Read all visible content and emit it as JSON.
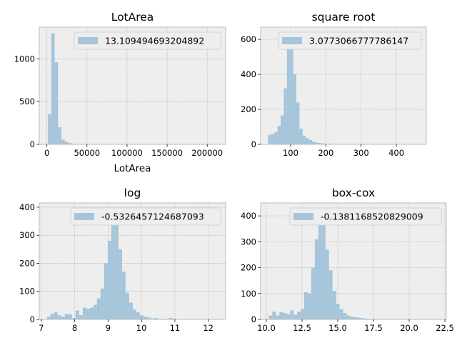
{
  "figure": {
    "background": "#ffffff"
  },
  "style": {
    "axes_bg": "#eeeeee",
    "grid_color": "#b2b2b2",
    "spine_color": "#bcbcbc",
    "bar_color": "#a6c5da"
  },
  "chart_data": [
    {
      "type": "bar",
      "title": "LotArea",
      "xlabel": "LotArea",
      "ylabel": "",
      "legend": {
        "label": "13.109494693204892",
        "loc": "upper right"
      },
      "grid": true,
      "xlim": [
        -9500,
        223000
      ],
      "ylim": [
        0,
        1370
      ],
      "xticks": [
        0,
        50000,
        100000,
        150000,
        200000
      ],
      "xtick_labels": [
        "0",
        "50000",
        "100000",
        "150000",
        "200000"
      ],
      "yticks": [
        0,
        500,
        1000
      ],
      "ytick_labels": [
        "0",
        "500",
        "1000"
      ],
      "bin_edges": [
        1300,
        5500,
        9700,
        13900,
        18100,
        22300,
        26500,
        30700,
        34900,
        39100,
        43300,
        47500,
        51700,
        55900,
        60100,
        64300,
        68500,
        72700,
        76900,
        81100,
        85300,
        89500,
        93700,
        97900,
        102100,
        106300,
        110500,
        114700,
        118900,
        123100,
        127300,
        131500,
        135700,
        139900,
        144100,
        148300,
        152500,
        156700,
        160900,
        165100,
        169300,
        173500,
        177700,
        181900,
        186100,
        190300,
        194500,
        198700,
        202900,
        207100,
        211300,
        215500
      ],
      "counts": [
        350,
        1300,
        960,
        200,
        55,
        30,
        15,
        8,
        4,
        3,
        2,
        1,
        1,
        1,
        0,
        1,
        0,
        0,
        0,
        0,
        0,
        0,
        0,
        0,
        0,
        0,
        0,
        0,
        0,
        0,
        0,
        0,
        0,
        0,
        0,
        0,
        0,
        0,
        1,
        0,
        0,
        0,
        0,
        0,
        0,
        0,
        0,
        0,
        0,
        0,
        1
      ]
    },
    {
      "type": "bar",
      "title": "square root",
      "xlabel": "",
      "ylabel": "",
      "legend": {
        "label": "3.0773066777786147",
        "loc": "upper right"
      },
      "grid": true,
      "xlim": [
        15,
        485
      ],
      "ylim": [
        0,
        670
      ],
      "xticks": [
        100,
        200,
        300,
        400
      ],
      "xtick_labels": [
        "100",
        "200",
        "300",
        "400"
      ],
      "yticks": [
        0,
        200,
        400,
        600
      ],
      "ytick_labels": [
        "0",
        "200",
        "400",
        "600"
      ],
      "bin_edges": [
        36.06,
        44.97,
        53.88,
        62.79,
        71.7,
        80.61,
        89.52,
        98.43,
        107.34,
        116.25,
        125.16,
        134.07,
        142.98,
        151.89,
        160.8,
        169.71,
        178.62,
        187.53,
        196.44,
        205.35,
        214.26,
        223.17,
        232.08,
        240.99,
        249.9,
        258.81,
        267.72,
        276.63,
        285.54,
        294.45,
        303.36,
        312.27,
        321.18,
        330.09,
        339.0,
        347.91,
        356.82,
        365.73,
        374.64,
        383.55,
        392.46,
        401.37,
        410.28,
        419.19,
        428.1,
        437.01,
        445.92,
        454.83,
        463.74
      ],
      "counts": [
        55,
        60,
        70,
        105,
        165,
        320,
        600,
        640,
        400,
        240,
        90,
        50,
        35,
        25,
        15,
        10,
        8,
        5,
        3,
        4,
        3,
        2,
        1,
        1,
        0,
        0,
        0,
        0,
        0,
        0,
        0,
        0,
        0,
        0,
        0,
        0,
        0,
        0,
        0,
        0,
        0,
        0,
        0,
        0,
        0,
        0,
        0,
        1
      ]
    },
    {
      "type": "bar",
      "title": "log",
      "xlabel": "",
      "ylabel": "",
      "legend": {
        "label": "-0.5326457124687093",
        "loc": "upper right"
      },
      "grid": true,
      "xlim": [
        6.94,
        12.52
      ],
      "ylim": [
        0,
        415
      ],
      "xticks": [
        7,
        8,
        9,
        10,
        11,
        12
      ],
      "xtick_labels": [
        "7",
        "8",
        "9",
        "10",
        "11",
        "12"
      ],
      "yticks": [
        0,
        100,
        200,
        300,
        400
      ],
      "ytick_labels": [
        "0",
        "100",
        "200",
        "300",
        "400"
      ],
      "bin_edges": [
        7.17,
        7.277,
        7.384,
        7.491,
        7.598,
        7.705,
        7.812,
        7.919,
        8.026,
        8.133,
        8.24,
        8.347,
        8.454,
        8.561,
        8.668,
        8.775,
        8.882,
        8.989,
        9.096,
        9.203,
        9.31,
        9.417,
        9.524,
        9.631,
        9.738,
        9.845,
        9.952,
        10.059,
        10.166,
        10.273,
        10.38,
        10.487,
        10.594,
        10.701,
        10.808,
        10.915,
        11.022,
        11.129,
        11.236,
        11.343,
        11.45,
        11.557,
        11.664,
        11.771,
        11.878,
        11.985,
        12.092,
        12.199,
        12.306
      ],
      "counts": [
        10,
        20,
        25,
        15,
        10,
        20,
        18,
        5,
        32,
        15,
        42,
        38,
        42,
        52,
        75,
        110,
        200,
        280,
        390,
        340,
        250,
        170,
        95,
        60,
        35,
        25,
        15,
        10,
        7,
        3,
        5,
        2,
        2,
        2,
        5,
        3,
        1,
        1,
        0,
        0,
        0,
        0,
        0,
        0,
        0,
        0,
        0,
        1
      ]
    },
    {
      "type": "bar",
      "title": "box-cox",
      "xlabel": "",
      "ylabel": "",
      "legend": {
        "label": "-0.1381168520829009",
        "loc": "upper right"
      },
      "grid": true,
      "xlim": [
        9.6,
        22.6
      ],
      "ylim": [
        0,
        450
      ],
      "xticks": [
        10.0,
        12.5,
        15.0,
        17.5,
        20.0,
        22.5
      ],
      "xtick_labels": [
        "10.0",
        "12.5",
        "15.0",
        "17.5",
        "20.0",
        "22.5"
      ],
      "yticks": [
        0,
        100,
        200,
        300,
        400
      ],
      "ytick_labels": [
        "0",
        "100",
        "200",
        "300",
        "400"
      ],
      "bin_edges": [
        10.17,
        10.418,
        10.666,
        10.914,
        11.162,
        11.41,
        11.658,
        11.906,
        12.154,
        12.402,
        12.65,
        12.898,
        13.146,
        13.394,
        13.642,
        13.89,
        14.138,
        14.386,
        14.634,
        14.882,
        15.13,
        15.378,
        15.626,
        15.874,
        16.122,
        16.37,
        16.618,
        16.866,
        17.114,
        17.362,
        17.61,
        17.858,
        18.106,
        18.354,
        18.602,
        18.85,
        19.098,
        19.346,
        19.594,
        19.842,
        20.09,
        20.338,
        20.586,
        20.834,
        21.082,
        21.33,
        21.578,
        21.826,
        22.074
      ],
      "counts": [
        15,
        30,
        15,
        28,
        25,
        20,
        35,
        18,
        30,
        40,
        105,
        100,
        200,
        310,
        430,
        395,
        270,
        190,
        110,
        60,
        40,
        25,
        15,
        10,
        8,
        7,
        5,
        3,
        2,
        2,
        0,
        0,
        0,
        0,
        0,
        0,
        0,
        0,
        0,
        0,
        0,
        0,
        0,
        0,
        2,
        0,
        0,
        0
      ]
    }
  ]
}
